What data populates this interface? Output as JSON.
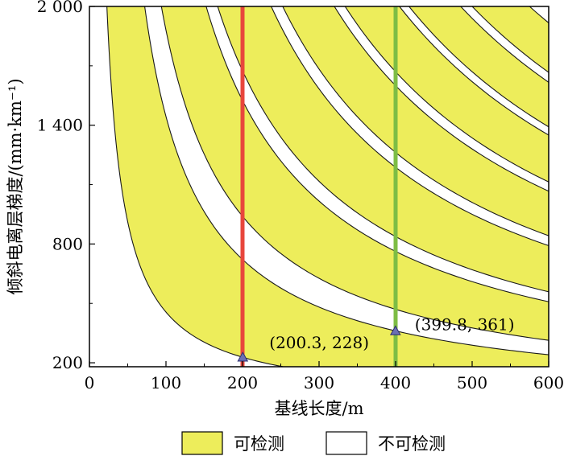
{
  "chart_data": {
    "type": "area",
    "xlabel": "基线长度/m",
    "ylabel": "倾斜电离层梯度/(mm·km⁻¹)",
    "xlim": [
      0,
      600
    ],
    "ylim": [
      180,
      2000
    ],
    "x_ticks": [
      "0",
      "100",
      "200",
      "300",
      "400",
      "500",
      "600"
    ],
    "y_ticks": [
      {
        "value": 200,
        "label": "200"
      },
      {
        "value": 800,
        "label": "800"
      },
      {
        "value": 1400,
        "label": "1 400"
      },
      {
        "value": 2000,
        "label": "2 000"
      }
    ],
    "y_minor_ticks": [
      500,
      1100,
      1700
    ],
    "band_constants": [
      45600,
      144400,
      188000,
      305000,
      335000,
      475000,
      505000,
      640000,
      668000,
      810000,
      835000,
      970000,
      1000000,
      1150000
    ],
    "detectable_color": "#eded5b",
    "undetectable_color": "#ffffff",
    "vertical_lines": [
      {
        "x": 200,
        "color": "#e8463c"
      },
      {
        "x": 400,
        "color": "#7dbd45"
      }
    ],
    "markers": [
      {
        "x": 200.3,
        "y": 228,
        "label": "(200.3, 228)"
      },
      {
        "x": 399.8,
        "y": 361,
        "label": "(399.8, 361)"
      }
    ],
    "legend": {
      "position": "bottom",
      "entries": [
        {
          "label": "可检测",
          "color": "#eded5b"
        },
        {
          "label": "不可检测",
          "color": "#ffffff"
        }
      ]
    }
  }
}
